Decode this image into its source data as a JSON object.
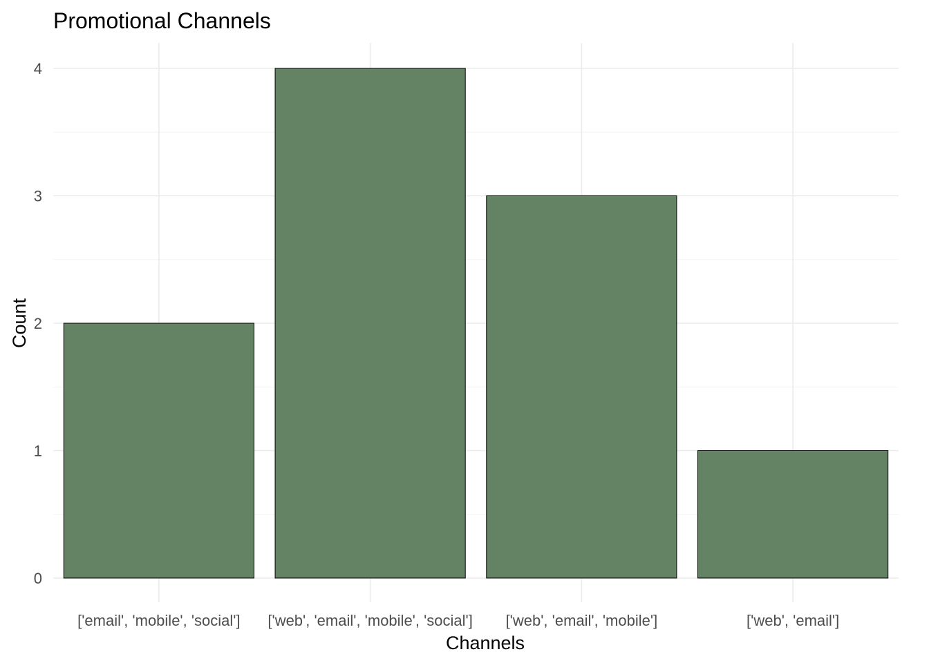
{
  "chart_data": {
    "type": "bar",
    "title": "Promotional Channels",
    "xlabel": "Channels",
    "ylabel": "Count",
    "categories": [
      "['email', 'mobile', 'social']",
      "['web', 'email', 'mobile', 'social']",
      "['web', 'email', 'mobile']",
      "['web', 'email']"
    ],
    "values": [
      2,
      4,
      3,
      1
    ],
    "ylim": [
      0,
      4.2
    ],
    "yticks": [
      0,
      1,
      2,
      3,
      4
    ],
    "grid": true,
    "legend": "none",
    "bar_color": "#648264"
  }
}
